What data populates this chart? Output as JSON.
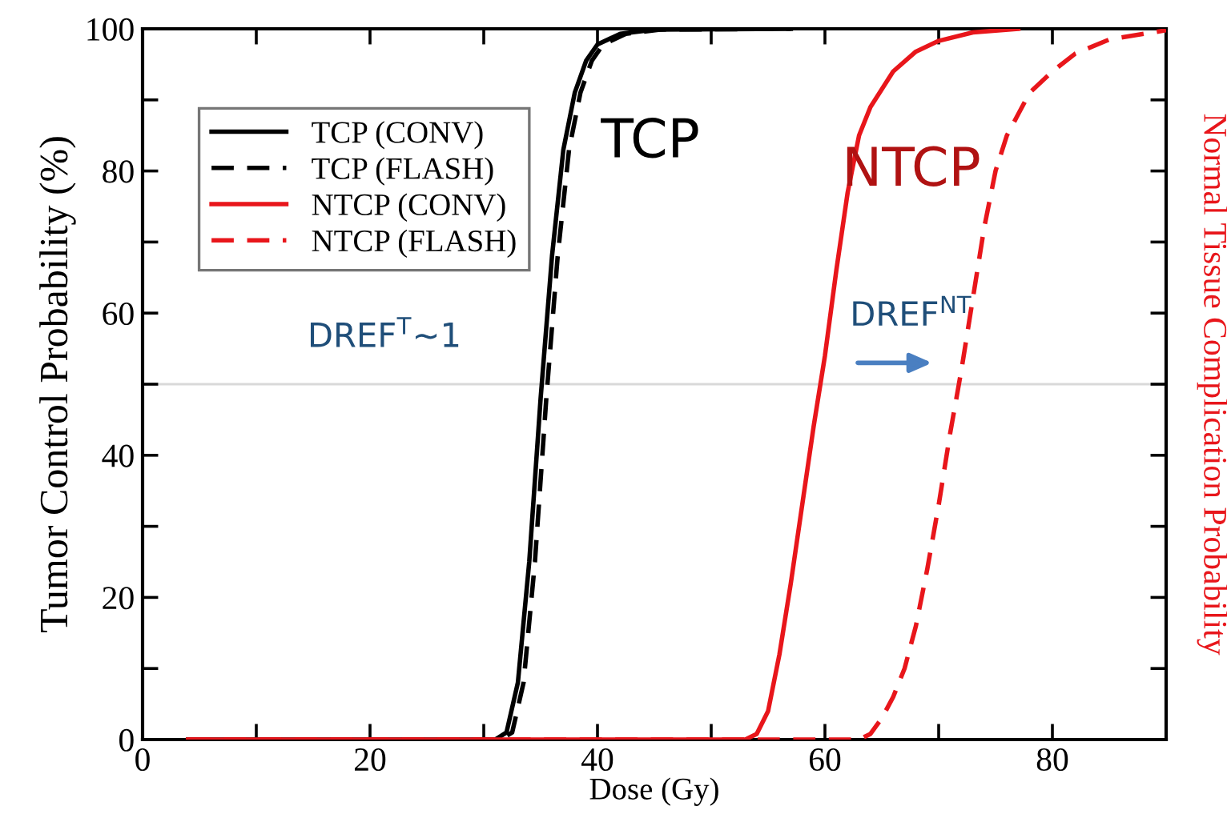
{
  "chart_data": {
    "type": "line",
    "xlabel": "Dose (Gy)",
    "ylabel": "Tumor Control Probability (%)",
    "y2label": "Normal Tissue Complication Probability",
    "xlim": [
      0,
      90
    ],
    "xticks": [
      0,
      {
        "value": 10,
        "label": null
      },
      20,
      {
        "value": 30,
        "label": null
      },
      40,
      {
        "value": 50,
        "label": null
      },
      60,
      {
        "value": 70,
        "label": null
      },
      80
    ],
    "ylim": [
      0,
      100
    ],
    "yticks": [
      0,
      {
        "value": 10,
        "label": null
      },
      20,
      {
        "value": 30,
        "label": null
      },
      40,
      {
        "value": 50,
        "label": null
      },
      60,
      {
        "value": 70,
        "label": null
      },
      80,
      {
        "value": 90,
        "label": null
      },
      100
    ],
    "tick_labels": [
      "x",
      "y"
    ],
    "legend": "top left",
    "grid": false,
    "marker": "none",
    "series": [
      {
        "name": "TCP (CONV)",
        "color": "#000000",
        "line_style": "solid",
        "x": [
          4,
          31,
          32,
          33,
          34,
          35,
          36,
          37,
          38,
          39,
          40,
          42,
          45,
          57
        ],
        "values": [
          0,
          0,
          1,
          8,
          25,
          48,
          68,
          83,
          91,
          95.5,
          97.8,
          99.3,
          99.9,
          100
        ]
      },
      {
        "name": "TCP (FLASH)",
        "color": "#000000",
        "line_style": "dashed",
        "x": [
          4,
          31.5,
          32.5,
          33.5,
          34.5,
          35.5,
          36.5,
          37.5,
          38.5,
          39.5,
          40.5,
          42.5,
          45.5,
          57
        ],
        "values": [
          0,
          0,
          1,
          8,
          25,
          48,
          68,
          83,
          91,
          95.5,
          97.8,
          99.3,
          99.9,
          100
        ]
      },
      {
        "name": "NTCP (CONV)",
        "color": "#e8161b",
        "line_style": "solid",
        "x": [
          4,
          53,
          54,
          55,
          56,
          57,
          58,
          59,
          60,
          61,
          62,
          63,
          64,
          66,
          68,
          70,
          73,
          77
        ],
        "values": [
          0,
          0,
          0.8,
          4,
          12,
          22,
          33,
          44,
          54,
          66,
          77,
          85,
          89,
          94,
          96.8,
          98.3,
          99.5,
          100
        ]
      },
      {
        "name": "NTCP (FLASH)",
        "color": "#e8161b",
        "line_style": "dashed",
        "x": [
          4,
          63,
          64,
          65,
          66,
          67,
          68,
          69,
          70,
          71,
          72,
          73,
          74,
          75,
          76,
          77,
          78,
          80,
          82,
          85,
          90
        ],
        "values": [
          0,
          0,
          0.8,
          3,
          6,
          10,
          16,
          24,
          33,
          43,
          52,
          62,
          72,
          80,
          85,
          88,
          91,
          94,
          96.5,
          98.5,
          99.8
        ]
      }
    ],
    "ref_lines": [
      {
        "axis": "y",
        "value": 50,
        "label": null,
        "color": "#d9d9d9",
        "line_style": "solid"
      }
    ],
    "annotations": [
      "TCP",
      "NTCP",
      "DREF$^{T}$~1",
      "DREF$^{NT}$"
    ]
  }
}
